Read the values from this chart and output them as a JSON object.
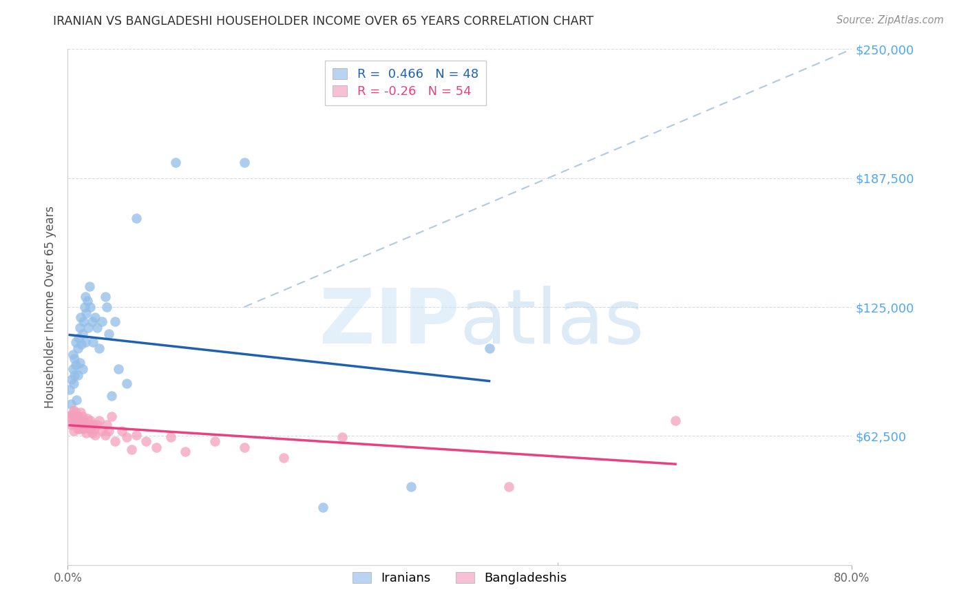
{
  "title": "IRANIAN VS BANGLADESHI HOUSEHOLDER INCOME OVER 65 YEARS CORRELATION CHART",
  "source": "Source: ZipAtlas.com",
  "ylabel": "Householder Income Over 65 years",
  "ylim": [
    0,
    250000
  ],
  "xlim": [
    0.0,
    0.8
  ],
  "yticks": [
    0,
    62500,
    125000,
    187500,
    250000
  ],
  "ytick_labels": [
    "",
    "$62,500",
    "$125,000",
    "$187,500",
    "$250,000"
  ],
  "watermark_zip": "ZIP",
  "watermark_atlas": "atlas",
  "iranian_R": 0.466,
  "iranian_N": 48,
  "bangladeshi_R": -0.26,
  "bangladeshi_N": 54,
  "iranian_color": "#92bde8",
  "bangladeshi_color": "#f4a0bc",
  "iranian_line_color": "#2060b0",
  "bangladeshi_line_color": "#e84080",
  "dashed_line_color": "#b0c8e0",
  "background_color": "#ffffff",
  "grid_color": "#d0d8e0",
  "title_color": "#303030",
  "right_label_color": "#50a8f0",
  "source_color": "#909090",
  "legend_box_color_iranian": "#b8d4f0",
  "legend_box_color_bangladeshi": "#f8c0d4",
  "iranians_x": [
    0.002,
    0.003,
    0.004,
    0.005,
    0.005,
    0.006,
    0.007,
    0.007,
    0.008,
    0.008,
    0.009,
    0.01,
    0.01,
    0.011,
    0.012,
    0.012,
    0.013,
    0.014,
    0.015,
    0.015,
    0.016,
    0.017,
    0.018,
    0.018,
    0.019,
    0.02,
    0.021,
    0.022,
    0.023,
    0.025,
    0.026,
    0.028,
    0.03,
    0.032,
    0.035,
    0.038,
    0.04,
    0.042,
    0.045,
    0.048,
    0.052,
    0.06,
    0.07,
    0.11,
    0.18,
    0.26,
    0.35,
    0.43
  ],
  "iranians_y": [
    85000,
    78000,
    90000,
    95000,
    102000,
    88000,
    92000,
    100000,
    97000,
    108000,
    80000,
    105000,
    92000,
    110000,
    115000,
    98000,
    120000,
    107000,
    112000,
    95000,
    118000,
    125000,
    130000,
    108000,
    122000,
    128000,
    115000,
    135000,
    125000,
    118000,
    108000,
    120000,
    115000,
    105000,
    118000,
    130000,
    125000,
    112000,
    82000,
    118000,
    95000,
    88000,
    168000,
    195000,
    195000,
    28000,
    38000,
    105000
  ],
  "bangladeshis_x": [
    0.002,
    0.003,
    0.004,
    0.005,
    0.006,
    0.006,
    0.007,
    0.008,
    0.008,
    0.009,
    0.01,
    0.01,
    0.011,
    0.012,
    0.012,
    0.013,
    0.014,
    0.015,
    0.015,
    0.016,
    0.017,
    0.018,
    0.019,
    0.02,
    0.021,
    0.022,
    0.023,
    0.024,
    0.025,
    0.026,
    0.027,
    0.028,
    0.03,
    0.032,
    0.035,
    0.038,
    0.04,
    0.042,
    0.045,
    0.048,
    0.055,
    0.06,
    0.065,
    0.07,
    0.08,
    0.09,
    0.105,
    0.12,
    0.15,
    0.18,
    0.22,
    0.28,
    0.45,
    0.62
  ],
  "bangladeshis_y": [
    72000,
    68000,
    73000,
    70000,
    75000,
    65000,
    72000,
    68000,
    74000,
    70000,
    66000,
    72000,
    68000,
    71000,
    66000,
    74000,
    70000,
    68000,
    72000,
    66000,
    70000,
    68000,
    64000,
    71000,
    68000,
    66000,
    70000,
    68000,
    64000,
    68000,
    66000,
    63000,
    68000,
    70000,
    65000,
    63000,
    68000,
    65000,
    72000,
    60000,
    65000,
    62000,
    56000,
    63000,
    60000,
    57000,
    62000,
    55000,
    60000,
    57000,
    52000,
    62000,
    38000,
    70000
  ]
}
